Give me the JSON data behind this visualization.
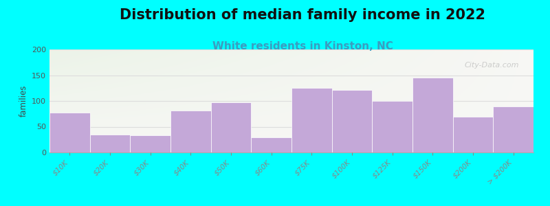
{
  "title": "Distribution of median family income in 2022",
  "subtitle": "White residents in Kinston, NC",
  "categories": [
    "$10K",
    "$20K",
    "$30K",
    "$40K",
    "$50K",
    "$60K",
    "$75K",
    "$100K",
    "$125K",
    "$150K",
    "$200K",
    "> $200K"
  ],
  "heights": [
    78,
    35,
    33,
    82,
    97,
    30,
    125,
    122,
    100,
    145,
    70,
    90
  ],
  "bar_color": "#c4a8d8",
  "bar_edge_color": "#d0b8e0",
  "background_color": "#00ffff",
  "plot_bg_color": "#f2f7f0",
  "title_fontsize": 15,
  "subtitle_fontsize": 11,
  "subtitle_color": "#3a9dc0",
  "ylabel": "families",
  "ylim": [
    0,
    200
  ],
  "yticks": [
    0,
    50,
    100,
    150,
    200
  ],
  "watermark": "City-Data.com",
  "grid_color": "#dddddd"
}
